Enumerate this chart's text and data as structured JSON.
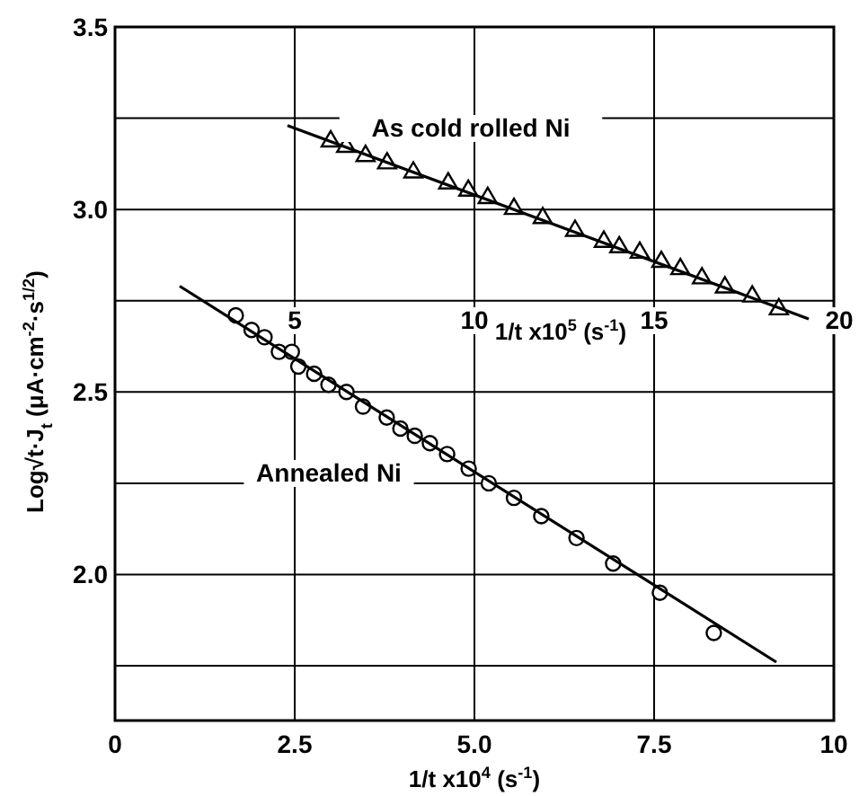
{
  "chart_data": {
    "type": "scatter",
    "xlabel": "1/t x10$^{4}$ (s$^{-1}$)",
    "x2label": "1/t x10$^{5}$ (s$^{-1}$)",
    "ylabel": "Log√t·J$_{t}$  (μA·cm$^{-2}$·s$^{1/2}$)",
    "xlim": [
      0,
      10
    ],
    "xticks": [
      0,
      2.5,
      {
        "value": 5,
        "label": "5.0"
      },
      7.5,
      10
    ],
    "x2lim": [
      0,
      20
    ],
    "x2ticks": [
      5,
      10,
      15,
      20
    ],
    "ylim": [
      1.6,
      3.5
    ],
    "yticks": [
      {
        "value": 1.75,
        "label": null
      },
      {
        "value": 2,
        "label": "2.0"
      },
      {
        "value": 2.25,
        "label": null
      },
      2.5,
      {
        "value": 2.75,
        "label": null
      },
      {
        "value": 3,
        "label": "3.0"
      },
      {
        "value": 3.25,
        "label": null
      },
      3.5
    ],
    "grid": true,
    "series": [
      {
        "name": "As cold rolled Ni",
        "color": "#000000",
        "marker": "triangle",
        "axis": "x2",
        "x": [
          6.0,
          6.43,
          6.97,
          7.57,
          8.3,
          9.27,
          9.83,
          10.37,
          11.1,
          11.9,
          12.8,
          13.6,
          14.03,
          14.6,
          15.2,
          15.73,
          16.33,
          16.97,
          17.73,
          18.47
        ],
        "values": [
          3.19,
          3.175,
          3.15,
          3.13,
          3.105,
          3.075,
          3.055,
          3.035,
          3.005,
          2.98,
          2.945,
          2.915,
          2.9,
          2.885,
          2.86,
          2.84,
          2.815,
          2.79,
          2.765,
          2.73
        ]
      },
      {
        "color": "#000000",
        "type": "line",
        "marker": "none",
        "axis": "x2",
        "x": [
          4.8,
          19.3
        ],
        "values": [
          3.23,
          2.7
        ]
      },
      {
        "name": "Annealed Ni",
        "color": "#000000",
        "marker": "circle",
        "x": [
          1.68,
          1.9,
          2.08,
          2.28,
          2.46,
          2.55,
          2.77,
          2.97,
          3.22,
          3.45,
          3.78,
          3.97,
          4.17,
          4.38,
          4.62,
          4.92,
          5.2,
          5.55,
          5.93,
          6.42,
          6.93,
          7.58,
          8.33
        ],
        "values": [
          2.71,
          2.67,
          2.65,
          2.61,
          2.61,
          2.57,
          2.55,
          2.52,
          2.5,
          2.46,
          2.43,
          2.4,
          2.38,
          2.36,
          2.33,
          2.29,
          2.25,
          2.21,
          2.16,
          2.1,
          2.03,
          1.95,
          1.84
        ]
      },
      {
        "color": "#000000",
        "type": "line",
        "marker": "none",
        "x": [
          0.9,
          9.2
        ],
        "values": [
          2.79,
          1.76
        ]
      }
    ]
  }
}
